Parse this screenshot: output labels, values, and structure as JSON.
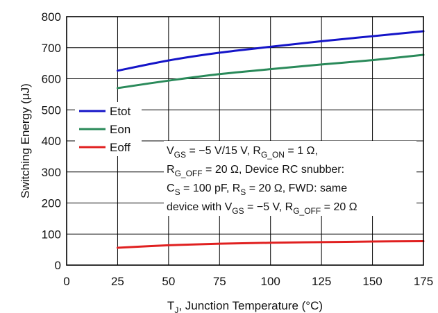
{
  "chart_data": {
    "type": "line",
    "xlabel_main": "T",
    "xlabel_sub": "J",
    "xlabel_rest": ", Junction Temperature (°C)",
    "ylabel": "Switching Energy (μJ)",
    "xlim": [
      0,
      175
    ],
    "ylim": [
      0,
      800
    ],
    "xticks": [
      "0",
      "25",
      "50",
      "75",
      "100",
      "125",
      "150",
      "175"
    ],
    "yticks": [
      "0",
      "100",
      "200",
      "300",
      "400",
      "500",
      "600",
      "700",
      "800"
    ],
    "grid": true,
    "legend_position": "left-middle",
    "series": [
      {
        "name": "Etot",
        "color": "#1414c8",
        "x": [
          25,
          50,
          75,
          100,
          125,
          150,
          175
        ],
        "y": [
          626,
          659,
          684,
          703,
          721,
          737,
          753
        ]
      },
      {
        "name": "Eon",
        "color": "#2a8a5a",
        "x": [
          25,
          50,
          75,
          100,
          125,
          150,
          175
        ],
        "y": [
          570,
          594,
          615,
          631,
          646,
          660,
          677
        ]
      },
      {
        "name": "Eoff",
        "color": "#e02020",
        "x": [
          25,
          50,
          75,
          100,
          125,
          150,
          175
        ],
        "y": [
          56,
          64,
          69,
          72,
          74,
          76,
          77
        ]
      }
    ],
    "annotation": {
      "line1_vgs": "V",
      "line1_vgs_sub": "GS",
      "line1_a": " = −5 V/15 V, R",
      "line1_rg_sub": "G_ON",
      "line1_b": " = 1 Ω,",
      "line2_r": "R",
      "line2_r_sub": "G_OFF",
      "line2_a": " = 20 Ω, Device RC snubber:",
      "line3_c": "C",
      "line3_c_sub": "S",
      "line3_a": " = 100 pF, R",
      "line3_r_sub": "S",
      "line3_b": " = 20 Ω, FWD: same",
      "line4_a": "device with V",
      "line4_vgs_sub": "GS",
      "line4_b": " = −5 V, R",
      "line4_r_sub": "G_OFF",
      "line4_c": " = 20 Ω"
    }
  }
}
